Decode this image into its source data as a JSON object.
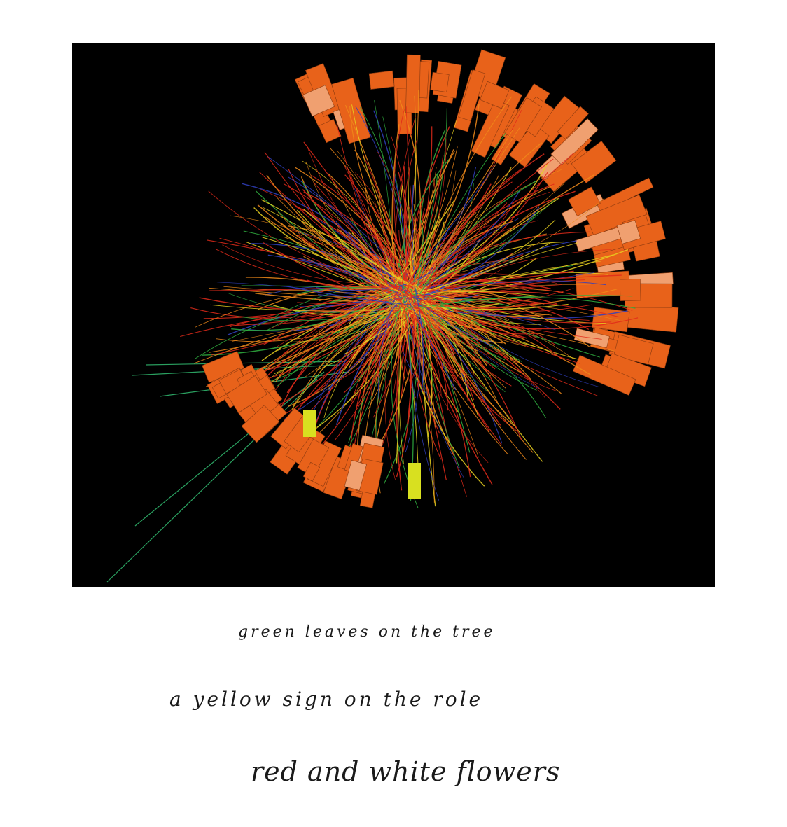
{
  "colors": {
    "background": "#000000",
    "calorimeter": "#e8621a",
    "calorimeter_light": "#f0a070",
    "yellow_block": "#d8e020",
    "track_red": "#e02a1a",
    "track_orange": "#f08a1a",
    "track_yellow": "#e8d020",
    "track_green": "#30b040",
    "track_blue": "#3040c0",
    "beam_line": "#2aa060"
  },
  "captions": {
    "line1": "green leaves on the tree",
    "line2": "a yellow sign on the role",
    "line3": "red and white flowers"
  }
}
